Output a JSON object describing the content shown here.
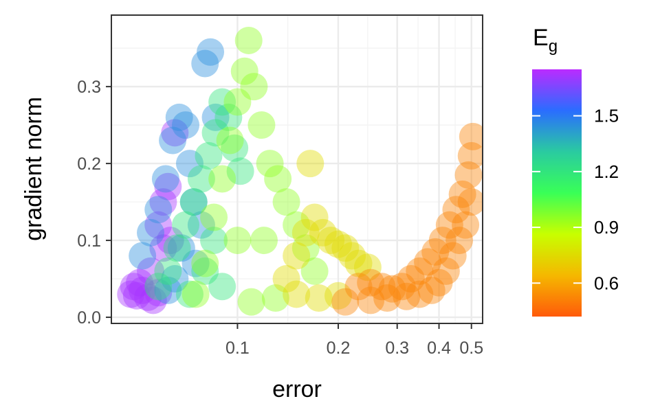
{
  "chart_data": {
    "type": "scatter",
    "xlabel": "error",
    "ylabel": "gradient norm",
    "x_scale": "log",
    "xlim": [
      0.042,
      0.54
    ],
    "ylim": [
      -0.008,
      0.393
    ],
    "x_ticks": [
      {
        "value": 0.1,
        "label": "0.1"
      },
      {
        "value": 0.2,
        "label": "0.2"
      },
      {
        "value": 0.3,
        "label": "0.3"
      },
      {
        "value": 0.4,
        "label": "0.4"
      },
      {
        "value": 0.5,
        "label": "0.5"
      }
    ],
    "y_ticks": [
      {
        "value": 0.0,
        "label": "0.0"
      },
      {
        "value": 0.1,
        "label": "0.1"
      },
      {
        "value": 0.2,
        "label": "0.2"
      },
      {
        "value": 0.3,
        "label": "0.3"
      }
    ],
    "grid": true,
    "legend": {
      "title": "E",
      "title_subscript": "g",
      "placement": "right",
      "range": [
        0.42,
        1.75
      ],
      "ticks": [
        {
          "value": 0.6,
          "label": "0.6"
        },
        {
          "value": 0.9,
          "label": "0.9"
        },
        {
          "value": 1.2,
          "label": "1.2"
        },
        {
          "value": 1.5,
          "label": "1.5"
        }
      ],
      "colors": [
        "#ff5a0a",
        "#f5b800",
        "#c8ff00",
        "#39ff57",
        "#2acba0",
        "#2a6dff",
        "#bb2bff"
      ]
    },
    "series": [
      {
        "eg": 1.72,
        "points": [
          [
            0.048,
            0.03
          ],
          [
            0.049,
            0.04
          ],
          [
            0.05,
            0.028
          ],
          [
            0.052,
            0.035
          ],
          [
            0.054,
            0.026
          ],
          [
            0.051,
            0.045
          ],
          [
            0.056,
            0.022
          ],
          [
            0.058,
            0.032
          ],
          [
            0.055,
            0.06
          ],
          [
            0.06,
            0.09
          ],
          [
            0.058,
            0.12
          ],
          [
            0.062,
            0.17
          ],
          [
            0.065,
            0.24
          ],
          [
            0.06,
            0.15
          ],
          [
            0.063,
            0.1
          ]
        ]
      },
      {
        "eg": 1.45,
        "points": [
          [
            0.052,
            0.08
          ],
          [
            0.055,
            0.11
          ],
          [
            0.058,
            0.14
          ],
          [
            0.061,
            0.18
          ],
          [
            0.064,
            0.23
          ],
          [
            0.067,
            0.26
          ],
          [
            0.07,
            0.25
          ],
          [
            0.072,
            0.2
          ],
          [
            0.074,
            0.15
          ],
          [
            0.078,
            0.12
          ],
          [
            0.08,
            0.33
          ],
          [
            0.083,
            0.345
          ],
          [
            0.068,
            0.09
          ],
          [
            0.065,
            0.05
          ],
          [
            0.075,
            0.07
          ],
          [
            0.086,
            0.26
          ],
          [
            0.062,
            0.035
          ]
        ]
      },
      {
        "eg": 1.2,
        "points": [
          [
            0.058,
            0.04
          ],
          [
            0.062,
            0.06
          ],
          [
            0.066,
            0.09
          ],
          [
            0.07,
            0.12
          ],
          [
            0.074,
            0.15
          ],
          [
            0.078,
            0.18
          ],
          [
            0.082,
            0.21
          ],
          [
            0.086,
            0.24
          ],
          [
            0.09,
            0.28
          ],
          [
            0.094,
            0.26
          ],
          [
            0.098,
            0.22
          ],
          [
            0.102,
            0.19
          ],
          [
            0.085,
            0.1
          ],
          [
            0.08,
            0.06
          ],
          [
            0.09,
            0.04
          ],
          [
            0.072,
            0.03
          ]
        ]
      },
      {
        "eg": 0.95,
        "points": [
          [
            0.075,
            0.03
          ],
          [
            0.08,
            0.07
          ],
          [
            0.085,
            0.13
          ],
          [
            0.09,
            0.18
          ],
          [
            0.095,
            0.23
          ],
          [
            0.1,
            0.28
          ],
          [
            0.105,
            0.32
          ],
          [
            0.108,
            0.36
          ],
          [
            0.112,
            0.3
          ],
          [
            0.118,
            0.25
          ],
          [
            0.125,
            0.2
          ],
          [
            0.132,
            0.18
          ],
          [
            0.14,
            0.15
          ],
          [
            0.15,
            0.12
          ],
          [
            0.16,
            0.09
          ],
          [
            0.17,
            0.06
          ],
          [
            0.11,
            0.02
          ],
          [
            0.13,
            0.025
          ],
          [
            0.1,
            0.1
          ],
          [
            0.12,
            0.1
          ]
        ]
      },
      {
        "eg": 0.75,
        "points": [
          [
            0.14,
            0.05
          ],
          [
            0.15,
            0.08
          ],
          [
            0.16,
            0.11
          ],
          [
            0.17,
            0.13
          ],
          [
            0.18,
            0.11
          ],
          [
            0.19,
            0.1
          ],
          [
            0.2,
            0.095
          ],
          [
            0.21,
            0.09
          ],
          [
            0.22,
            0.08
          ],
          [
            0.23,
            0.07
          ],
          [
            0.15,
            0.03
          ],
          [
            0.175,
            0.025
          ],
          [
            0.2,
            0.028
          ],
          [
            0.165,
            0.2
          ],
          [
            0.245,
            0.065
          ]
        ]
      },
      {
        "eg": 0.52,
        "points": [
          [
            0.23,
            0.04
          ],
          [
            0.25,
            0.045
          ],
          [
            0.27,
            0.04
          ],
          [
            0.29,
            0.037
          ],
          [
            0.31,
            0.04
          ],
          [
            0.33,
            0.05
          ],
          [
            0.35,
            0.06
          ],
          [
            0.37,
            0.072
          ],
          [
            0.39,
            0.085
          ],
          [
            0.41,
            0.1
          ],
          [
            0.43,
            0.12
          ],
          [
            0.45,
            0.14
          ],
          [
            0.47,
            0.16
          ],
          [
            0.49,
            0.185
          ],
          [
            0.5,
            0.21
          ],
          [
            0.505,
            0.235
          ],
          [
            0.5,
            0.15
          ],
          [
            0.48,
            0.12
          ],
          [
            0.46,
            0.1
          ],
          [
            0.44,
            0.08
          ],
          [
            0.42,
            0.06
          ],
          [
            0.4,
            0.045
          ],
          [
            0.38,
            0.035
          ],
          [
            0.35,
            0.03
          ],
          [
            0.32,
            0.027
          ],
          [
            0.28,
            0.025
          ],
          [
            0.25,
            0.022
          ],
          [
            0.21,
            0.02
          ]
        ]
      }
    ]
  }
}
